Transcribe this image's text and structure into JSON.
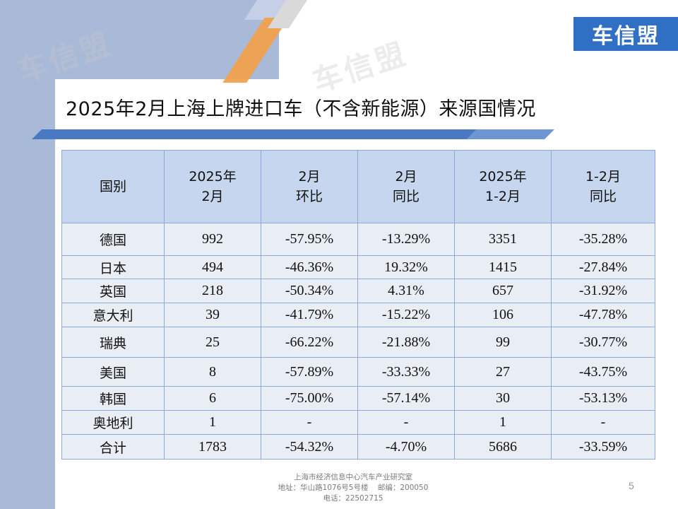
{
  "brand": {
    "logo_text": "车信盟",
    "watermark_text": "车信盟"
  },
  "title": "2025年2月上海上牌进口车（不含新能源）来源国情况",
  "table": {
    "headers": [
      {
        "line1": "国别",
        "line2": ""
      },
      {
        "line1": "2025年",
        "line2": "2月"
      },
      {
        "line1": "2月",
        "line2": "环比"
      },
      {
        "line1": "2月",
        "line2": "同比"
      },
      {
        "line1": "2025年",
        "line2": "1-2月"
      },
      {
        "line1": "1-2月",
        "line2": "同比"
      }
    ],
    "rows": [
      [
        "德国",
        "992",
        "-57.95%",
        "-13.29%",
        "3351",
        "-35.28%"
      ],
      [
        "日本",
        "494",
        "-46.36%",
        "19.32%",
        "1415",
        "-27.84%"
      ],
      [
        "英国",
        "218",
        "-50.34%",
        "4.31%",
        "657",
        "-31.92%"
      ],
      [
        "意大利",
        "39",
        "-41.79%",
        "-15.22%",
        "106",
        "-47.78%"
      ],
      [
        "瑞典",
        "25",
        "-66.22%",
        "-21.88%",
        "99",
        "-30.77%"
      ],
      [
        "美国",
        "8",
        "-57.89%",
        "-33.33%",
        "27",
        "-43.75%"
      ],
      [
        "韩国",
        "6",
        "-75.00%",
        "-57.14%",
        "30",
        "-53.13%"
      ],
      [
        "奥地利",
        "1",
        "-",
        "-",
        "1",
        "-"
      ],
      [
        "合计",
        "1783",
        "-54.32%",
        "-4.70%",
        "5686",
        "-33.59%"
      ]
    ]
  },
  "footer": {
    "line1": "上海市经济信息中心汽车产业研究室",
    "line2": "地址：华山路1076号5号楼    邮编：200050",
    "line3": "电话：22502715"
  },
  "page_number": "5",
  "colors": {
    "header_fill": "#c6d6ef",
    "row_fill": "#e9edf4",
    "border": "#8ea9d8",
    "logo_bg": "#2f6fc4",
    "accent_orange": "#f2a14a",
    "bar_blue": "#4a78c2"
  }
}
